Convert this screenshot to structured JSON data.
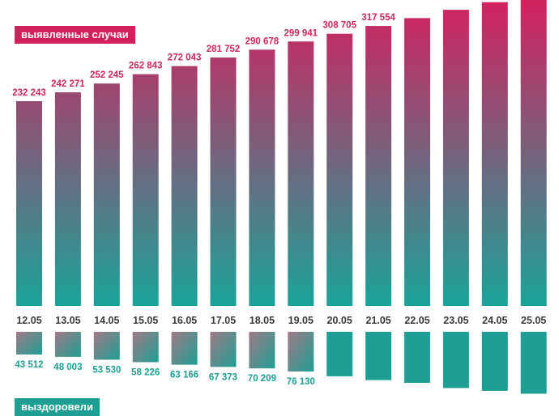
{
  "legend": {
    "cases_label": "выявленные случаи",
    "recovered_label": "выздоровели"
  },
  "colors": {
    "cases_top": "#d3215f",
    "cases_bottom": "#1aa39a",
    "recovered_top": "#a07a86",
    "recovered_bottom": "#1e9e94",
    "cases_text": "#c9285c",
    "recovered_text": "#1d9e94"
  },
  "chart_data": {
    "type": "bar",
    "categories": [
      "12.05",
      "13.05",
      "14.05",
      "15.05",
      "16.05",
      "17.05",
      "18.05",
      "19.05",
      "20.05",
      "21.05",
      "22.05",
      "23.05",
      "24.05",
      "25.05"
    ],
    "series": [
      {
        "name": "выявленные случаи",
        "values": [
          232243,
          242271,
          252245,
          262843,
          272043,
          281752,
          290678,
          299941,
          308705,
          317554,
          326448,
          335882,
          344481,
          353427
        ],
        "labels": [
          "232 243",
          "242 271",
          "252 245",
          "262 843",
          "272 043",
          "281 752",
          "290 678",
          "299 941",
          "308 705",
          "317 554",
          null,
          null,
          null,
          null
        ]
      },
      {
        "name": "выздоровели",
        "values": [
          43512,
          48003,
          53530,
          58226,
          63166,
          67373,
          70209,
          76130,
          85392,
          92681,
          97930,
          107936,
          113299,
          118798
        ],
        "labels": [
          "43 512",
          "48 003",
          "53 530",
          "58 226",
          "63 166",
          "67 373",
          "70 209",
          "76 130",
          null,
          null,
          null,
          null,
          null,
          null
        ]
      }
    ]
  }
}
